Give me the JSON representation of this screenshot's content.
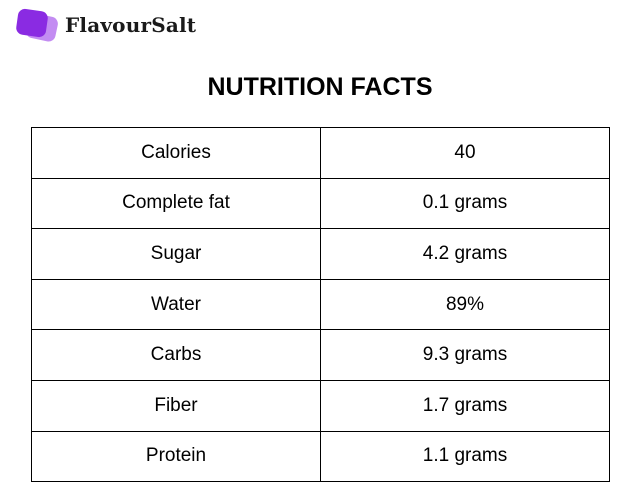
{
  "brand": {
    "name": "FlavourSalt",
    "logo_icon": "stacked-rounded-squares-icon",
    "colors": {
      "back": "#c38cf2",
      "front": "#8a2be2"
    }
  },
  "title": "NUTRITION FACTS",
  "table": {
    "rows": [
      {
        "label": "Calories",
        "value": "40"
      },
      {
        "label": "Complete fat",
        "value": "0.1 grams"
      },
      {
        "label": "Sugar",
        "value": "4.2 grams"
      },
      {
        "label": "Water",
        "value": "89%"
      },
      {
        "label": "Carbs",
        "value": "9.3 grams"
      },
      {
        "label": "Fiber",
        "value": "1.7 grams"
      },
      {
        "label": "Protein",
        "value": "1.1 grams"
      }
    ]
  }
}
